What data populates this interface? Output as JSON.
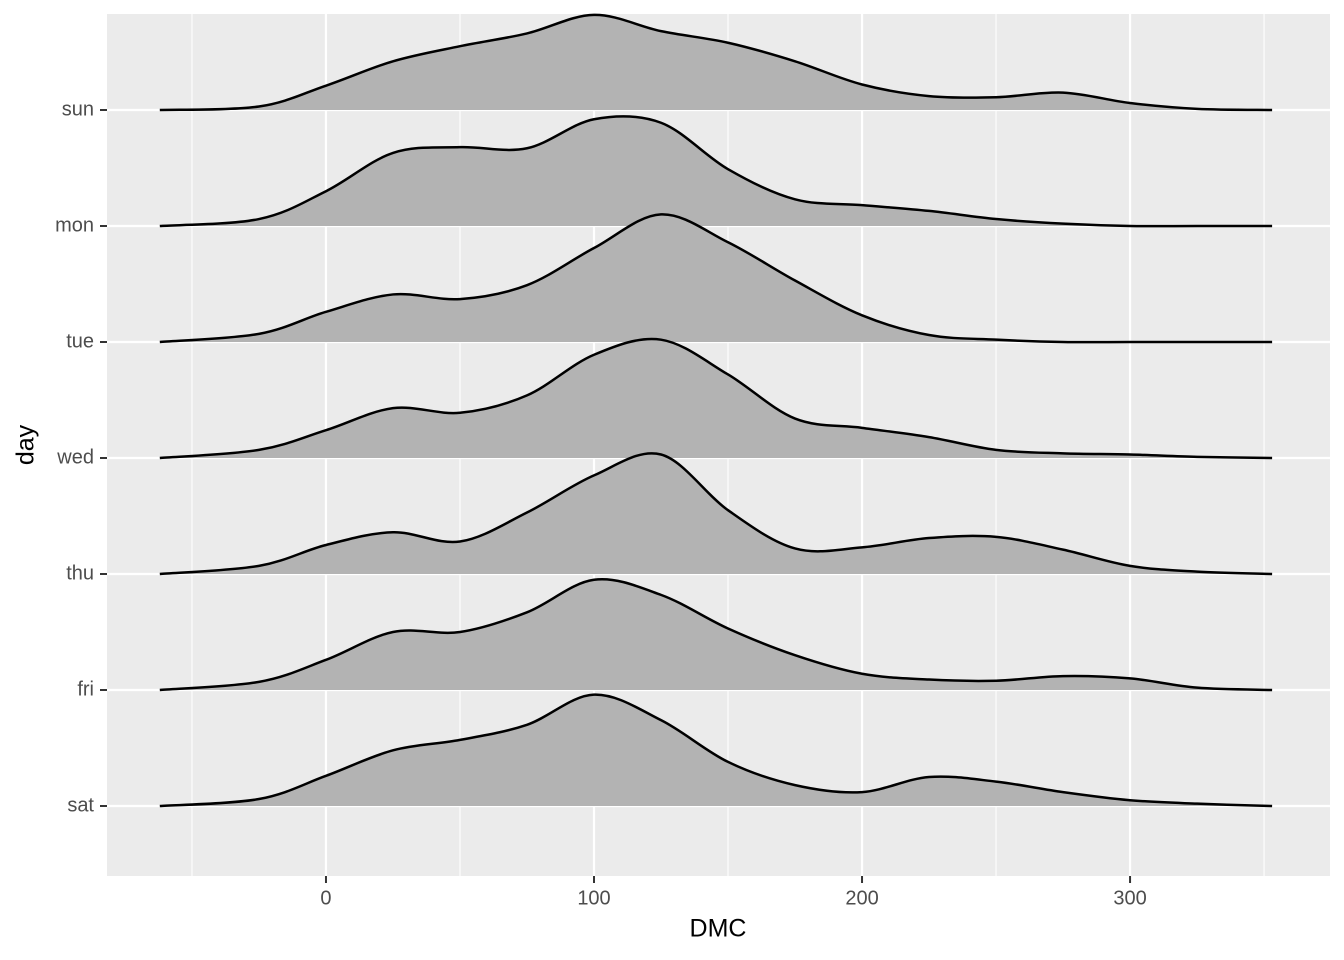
{
  "chart_data": {
    "type": "ridgeline",
    "x_label": "DMC",
    "y_label": "day",
    "categories": [
      "sat",
      "fri",
      "thu",
      "wed",
      "tue",
      "mon",
      "sun"
    ],
    "x": [
      -62,
      -25,
      0,
      25,
      50,
      75,
      100,
      125,
      150,
      175,
      200,
      225,
      250,
      275,
      300,
      325,
      353
    ],
    "densities": [
      [
        0,
        0.06,
        0.26,
        0.48,
        0.57,
        0.7,
        0.96,
        0.74,
        0.38,
        0.18,
        0.12,
        0.25,
        0.21,
        0.12,
        0.05,
        0.02,
        0
      ],
      [
        0,
        0.07,
        0.26,
        0.5,
        0.5,
        0.67,
        0.95,
        0.82,
        0.53,
        0.3,
        0.14,
        0.09,
        0.08,
        0.12,
        0.1,
        0.02,
        0
      ],
      [
        0,
        0.07,
        0.25,
        0.36,
        0.28,
        0.53,
        0.85,
        1.03,
        0.55,
        0.22,
        0.23,
        0.31,
        0.32,
        0.21,
        0.07,
        0.02,
        0
      ],
      [
        0,
        0.07,
        0.24,
        0.43,
        0.39,
        0.54,
        0.89,
        1.02,
        0.72,
        0.34,
        0.26,
        0.18,
        0.07,
        0.04,
        0.03,
        0.01,
        0
      ],
      [
        0,
        0.07,
        0.26,
        0.41,
        0.37,
        0.49,
        0.81,
        1.1,
        0.86,
        0.53,
        0.23,
        0.06,
        0.02,
        0,
        0,
        0,
        0
      ],
      [
        0,
        0.06,
        0.3,
        0.63,
        0.68,
        0.67,
        0.92,
        0.89,
        0.49,
        0.23,
        0.18,
        0.13,
        0.06,
        0.02,
        0,
        0,
        0
      ],
      [
        0,
        0.03,
        0.21,
        0.42,
        0.55,
        0.66,
        0.82,
        0.68,
        0.58,
        0.42,
        0.22,
        0.12,
        0.11,
        0.15,
        0.06,
        0.01,
        0
      ]
    ],
    "fill": "#b3b3b3",
    "line_color": "#000000",
    "xlim": [
      -81.7,
      374.6
    ],
    "xticks": [
      0,
      100,
      200,
      300
    ],
    "xminor": [
      -50,
      50,
      150,
      250,
      350
    ],
    "grid": true
  }
}
